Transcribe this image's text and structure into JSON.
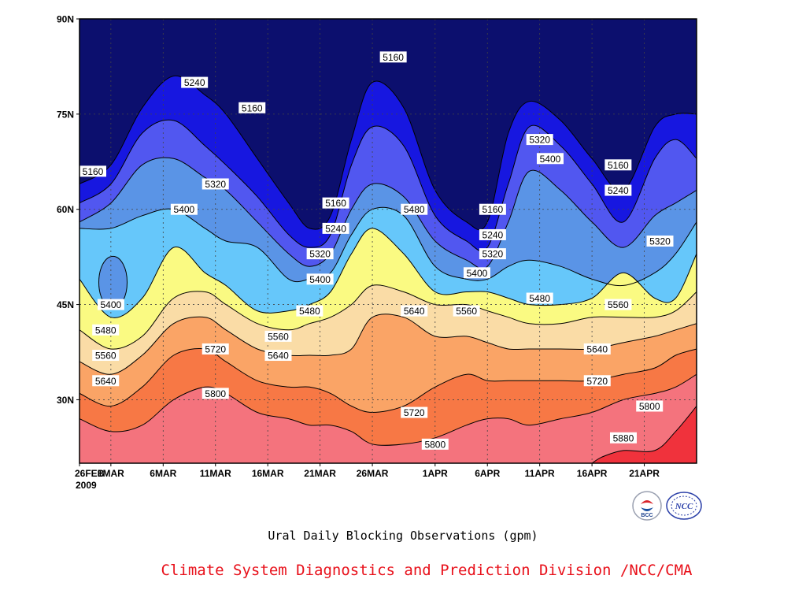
{
  "chart_data": {
    "type": "contour",
    "title": "Ural Daily Blocking Observations (gpm)",
    "x_axis": {
      "tick_labels": [
        "26FEB",
        "1MAR",
        "6MAR",
        "11MAR",
        "16MAR",
        "21MAR",
        "26MAR",
        "1APR",
        "6APR",
        "11APR",
        "16APR",
        "21APR"
      ],
      "tick_days": [
        0,
        3,
        8,
        13,
        18,
        23,
        28,
        34,
        39,
        44,
        49,
        54
      ],
      "sub_label": "2009",
      "range_days": [
        0,
        59
      ]
    },
    "y_axis": {
      "tick_labels": [
        "30N",
        "45N",
        "60N",
        "75N",
        "90N"
      ],
      "tick_values": [
        30,
        45,
        60,
        75,
        90
      ],
      "range": [
        20,
        90
      ]
    },
    "grid": "dotted",
    "levels": [
      5160,
      5240,
      5320,
      5400,
      5480,
      5560,
      5640,
      5720,
      5800,
      5880
    ],
    "band_colors": [
      "#0c0f6e",
      "#1717e0",
      "#5157f0",
      "#5a94e6",
      "#66c7fa",
      "#fafa82",
      "#fadca6",
      "#faa466",
      "#f77845",
      "#f4737d",
      "#f0323c"
    ],
    "contour_lines": [
      {
        "level": 5160,
        "points": [
          [
            0,
            64
          ],
          [
            3,
            67
          ],
          [
            6,
            76
          ],
          [
            9,
            81
          ],
          [
            12,
            78
          ],
          [
            14,
            75
          ],
          [
            17,
            68
          ],
          [
            20,
            61
          ],
          [
            22,
            57
          ],
          [
            24,
            59
          ],
          [
            26,
            71
          ],
          [
            28,
            80
          ],
          [
            31,
            76
          ],
          [
            34,
            63
          ],
          [
            37,
            58
          ],
          [
            39,
            58
          ],
          [
            41,
            72
          ],
          [
            43,
            77
          ],
          [
            46,
            74
          ],
          [
            49,
            68
          ],
          [
            52,
            63
          ],
          [
            55,
            73
          ],
          [
            57,
            75
          ],
          [
            59,
            75
          ]
        ]
      },
      {
        "level": 5240,
        "points": [
          [
            0,
            61
          ],
          [
            3,
            64
          ],
          [
            6,
            72
          ],
          [
            9,
            74
          ],
          [
            12,
            70
          ],
          [
            14,
            67
          ],
          [
            17,
            62
          ],
          [
            20,
            56
          ],
          [
            22,
            54
          ],
          [
            24,
            56
          ],
          [
            26,
            67
          ],
          [
            28,
            73
          ],
          [
            31,
            70
          ],
          [
            34,
            59
          ],
          [
            37,
            55
          ],
          [
            39,
            54
          ],
          [
            41,
            64
          ],
          [
            43,
            73
          ],
          [
            46,
            70
          ],
          [
            49,
            64
          ],
          [
            52,
            58
          ],
          [
            55,
            68
          ],
          [
            57,
            71
          ],
          [
            59,
            68
          ]
        ]
      },
      {
        "level": 5320,
        "points": [
          [
            0,
            58
          ],
          [
            3,
            61
          ],
          [
            6,
            67
          ],
          [
            9,
            68
          ],
          [
            12,
            65
          ],
          [
            14,
            63
          ],
          [
            17,
            58
          ],
          [
            20,
            53
          ],
          [
            22,
            51
          ],
          [
            24,
            53
          ],
          [
            26,
            60
          ],
          [
            28,
            64
          ],
          [
            31,
            62
          ],
          [
            34,
            55
          ],
          [
            37,
            52
          ],
          [
            39,
            51
          ],
          [
            41,
            58
          ],
          [
            43,
            66
          ],
          [
            46,
            63
          ],
          [
            49,
            58
          ],
          [
            52,
            54
          ],
          [
            55,
            59
          ],
          [
            57,
            61
          ],
          [
            59,
            63
          ]
        ]
      },
      {
        "level": 5400,
        "points": [
          [
            0,
            57
          ],
          [
            3,
            57
          ],
          [
            6,
            59
          ],
          [
            9,
            60
          ],
          [
            12,
            57
          ],
          [
            14,
            55
          ],
          [
            17,
            54
          ],
          [
            20,
            49
          ],
          [
            22,
            49
          ],
          [
            24,
            50
          ],
          [
            26,
            56
          ],
          [
            28,
            60
          ],
          [
            31,
            59
          ],
          [
            34,
            51
          ],
          [
            37,
            49
          ],
          [
            39,
            49
          ],
          [
            41,
            51
          ],
          [
            43,
            52
          ],
          [
            46,
            51
          ],
          [
            49,
            49
          ],
          [
            52,
            48
          ],
          [
            55,
            50
          ],
          [
            57,
            53
          ],
          [
            59,
            58
          ]
        ]
      },
      {
        "level": 5480,
        "points": [
          [
            0,
            49
          ],
          [
            3,
            43
          ],
          [
            6,
            46
          ],
          [
            9,
            54
          ],
          [
            12,
            50
          ],
          [
            14,
            48
          ],
          [
            17,
            44
          ],
          [
            20,
            44
          ],
          [
            22,
            45
          ],
          [
            24,
            47
          ],
          [
            26,
            53
          ],
          [
            28,
            57
          ],
          [
            31,
            53
          ],
          [
            34,
            47
          ],
          [
            37,
            47
          ],
          [
            39,
            47
          ],
          [
            41,
            46
          ],
          [
            43,
            45
          ],
          [
            46,
            45
          ],
          [
            49,
            46
          ],
          [
            52,
            50
          ],
          [
            55,
            46
          ],
          [
            57,
            46
          ],
          [
            59,
            53
          ]
        ]
      },
      {
        "level": 5560,
        "points": [
          [
            0,
            41
          ],
          [
            3,
            38
          ],
          [
            6,
            40
          ],
          [
            9,
            46
          ],
          [
            12,
            47
          ],
          [
            14,
            45
          ],
          [
            17,
            42
          ],
          [
            20,
            41
          ],
          [
            22,
            42
          ],
          [
            24,
            43
          ],
          [
            26,
            45
          ],
          [
            28,
            48
          ],
          [
            31,
            47
          ],
          [
            34,
            45
          ],
          [
            37,
            45
          ],
          [
            39,
            44
          ],
          [
            41,
            43
          ],
          [
            43,
            42
          ],
          [
            46,
            42
          ],
          [
            49,
            43
          ],
          [
            52,
            43
          ],
          [
            55,
            43
          ],
          [
            57,
            44
          ],
          [
            59,
            47
          ]
        ]
      },
      {
        "level": 5640,
        "points": [
          [
            0,
            36
          ],
          [
            3,
            34
          ],
          [
            6,
            37
          ],
          [
            9,
            42
          ],
          [
            12,
            43
          ],
          [
            14,
            41
          ],
          [
            17,
            38
          ],
          [
            20,
            37
          ],
          [
            22,
            37
          ],
          [
            24,
            37
          ],
          [
            26,
            38
          ],
          [
            28,
            43
          ],
          [
            31,
            43
          ],
          [
            34,
            40
          ],
          [
            37,
            40
          ],
          [
            39,
            39
          ],
          [
            41,
            38
          ],
          [
            43,
            38
          ],
          [
            46,
            38
          ],
          [
            49,
            38
          ],
          [
            52,
            39
          ],
          [
            55,
            40
          ],
          [
            57,
            41
          ],
          [
            59,
            42
          ]
        ]
      },
      {
        "level": 5720,
        "points": [
          [
            0,
            31
          ],
          [
            3,
            29
          ],
          [
            6,
            32
          ],
          [
            9,
            37
          ],
          [
            12,
            38
          ],
          [
            14,
            36
          ],
          [
            17,
            33
          ],
          [
            20,
            32
          ],
          [
            22,
            32
          ],
          [
            24,
            31
          ],
          [
            26,
            29
          ],
          [
            28,
            28
          ],
          [
            31,
            29
          ],
          [
            34,
            32
          ],
          [
            37,
            34
          ],
          [
            39,
            33
          ],
          [
            41,
            33
          ],
          [
            43,
            33
          ],
          [
            46,
            33
          ],
          [
            49,
            33
          ],
          [
            52,
            34
          ],
          [
            55,
            35
          ],
          [
            57,
            37
          ],
          [
            59,
            38
          ]
        ]
      },
      {
        "level": 5800,
        "points": [
          [
            0,
            27
          ],
          [
            3,
            25
          ],
          [
            6,
            26
          ],
          [
            9,
            30
          ],
          [
            12,
            32
          ],
          [
            14,
            31
          ],
          [
            17,
            28
          ],
          [
            20,
            27
          ],
          [
            22,
            26
          ],
          [
            24,
            26
          ],
          [
            26,
            25
          ],
          [
            28,
            23
          ],
          [
            31,
            23
          ],
          [
            34,
            24
          ],
          [
            37,
            26
          ],
          [
            39,
            27
          ],
          [
            41,
            27
          ],
          [
            43,
            26
          ],
          [
            46,
            27
          ],
          [
            49,
            28
          ],
          [
            52,
            30
          ],
          [
            55,
            31
          ],
          [
            57,
            32
          ],
          [
            59,
            34
          ]
        ]
      },
      {
        "level": 5880,
        "points": [
          [
            49,
            20
          ],
          [
            50,
            21
          ],
          [
            52,
            22
          ],
          [
            55,
            22
          ],
          [
            57,
            25
          ],
          [
            59,
            29
          ]
        ]
      }
    ],
    "contour_labels": [
      {
        "text": "5160",
        "x": 0.6,
        "y": 66
      },
      {
        "text": "5240",
        "x": 11.0,
        "y": 80
      },
      {
        "text": "5160",
        "x": 16.5,
        "y": 76
      },
      {
        "text": "5320",
        "x": 13.0,
        "y": 64
      },
      {
        "text": "5400",
        "x": 10.0,
        "y": 60
      },
      {
        "text": "5400",
        "x": 3.0,
        "y": 45
      },
      {
        "text": "5480",
        "x": 2.5,
        "y": 41
      },
      {
        "text": "5560",
        "x": 2.5,
        "y": 37
      },
      {
        "text": "5640",
        "x": 2.5,
        "y": 33
      },
      {
        "text": "5720",
        "x": 13.0,
        "y": 38
      },
      {
        "text": "5800",
        "x": 13.0,
        "y": 31
      },
      {
        "text": "5560",
        "x": 19.0,
        "y": 40
      },
      {
        "text": "5640",
        "x": 19.0,
        "y": 37
      },
      {
        "text": "5480",
        "x": 22.0,
        "y": 44
      },
      {
        "text": "5400",
        "x": 23.0,
        "y": 49
      },
      {
        "text": "5160",
        "x": 24.5,
        "y": 61
      },
      {
        "text": "5240",
        "x": 24.5,
        "y": 57
      },
      {
        "text": "5320",
        "x": 23.0,
        "y": 53
      },
      {
        "text": "5160",
        "x": 30.0,
        "y": 84
      },
      {
        "text": "5480",
        "x": 32.0,
        "y": 60
      },
      {
        "text": "5640",
        "x": 32.0,
        "y": 44
      },
      {
        "text": "5720",
        "x": 32.0,
        "y": 28
      },
      {
        "text": "5800",
        "x": 34.0,
        "y": 23
      },
      {
        "text": "5560",
        "x": 37.0,
        "y": 44
      },
      {
        "text": "5160",
        "x": 39.5,
        "y": 60
      },
      {
        "text": "5240",
        "x": 39.5,
        "y": 56
      },
      {
        "text": "5320",
        "x": 39.5,
        "y": 53
      },
      {
        "text": "5400",
        "x": 38.0,
        "y": 50
      },
      {
        "text": "5320",
        "x": 44.0,
        "y": 71
      },
      {
        "text": "5400",
        "x": 45.0,
        "y": 68
      },
      {
        "text": "5480",
        "x": 44.0,
        "y": 46
      },
      {
        "text": "5640",
        "x": 49.5,
        "y": 38
      },
      {
        "text": "5720",
        "x": 49.5,
        "y": 33
      },
      {
        "text": "5560",
        "x": 51.5,
        "y": 45
      },
      {
        "text": "5160",
        "x": 51.5,
        "y": 67
      },
      {
        "text": "5240",
        "x": 51.5,
        "y": 63
      },
      {
        "text": "5320",
        "x": 55.5,
        "y": 55
      },
      {
        "text": "5800",
        "x": 54.5,
        "y": 29
      },
      {
        "text": "5880",
        "x": 52.0,
        "y": 24
      }
    ]
  },
  "footer": {
    "credit": "Climate System Diagnostics and Prediction Division /NCC/CMA",
    "logo_left_text": "BCC",
    "logo_right_text": "NCC"
  }
}
